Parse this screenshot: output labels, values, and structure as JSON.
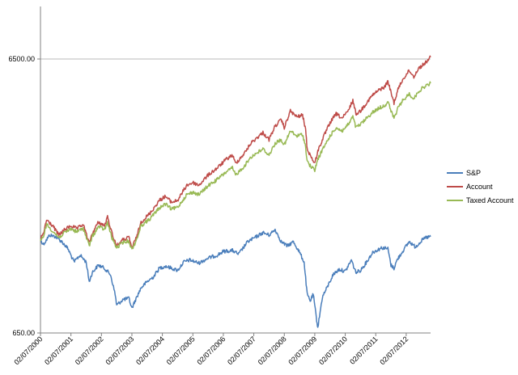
{
  "chart_data": {
    "type": "line",
    "title": "",
    "xlabel": "",
    "ylabel": "",
    "y_scale": "log",
    "ylim": [
      650,
      6500
    ],
    "y_ticks": [
      "650.00",
      "6500.00"
    ],
    "grid": "horizontal at 6500",
    "legend_position": "right",
    "x_ticks": [
      "02/07/2000",
      "02/07/2001",
      "02/07/2002",
      "02/07/2003",
      "02/07/2004",
      "02/07/2005",
      "02/07/2006",
      "02/07/2007",
      "02/07/2008",
      "02/07/2009",
      "02/07/2010",
      "02/07/2011",
      "02/07/2012"
    ],
    "x_start": 2000.1,
    "x_end": 2012.9,
    "series": [
      {
        "name": "S&P",
        "color": "#4a7ebb",
        "points": [
          [
            2000.1,
            1420
          ],
          [
            2000.2,
            1370
          ],
          [
            2000.4,
            1480
          ],
          [
            2000.6,
            1460
          ],
          [
            2000.8,
            1400
          ],
          [
            2001.0,
            1320
          ],
          [
            2001.2,
            1180
          ],
          [
            2001.4,
            1250
          ],
          [
            2001.6,
            1180
          ],
          [
            2001.7,
            1000
          ],
          [
            2001.8,
            1080
          ],
          [
            2002.0,
            1150
          ],
          [
            2002.2,
            1120
          ],
          [
            2002.4,
            1060
          ],
          [
            2002.55,
            900
          ],
          [
            2002.6,
            820
          ],
          [
            2002.8,
            860
          ],
          [
            2003.0,
            870
          ],
          [
            2003.1,
            800
          ],
          [
            2003.2,
            850
          ],
          [
            2003.4,
            950
          ],
          [
            2003.6,
            1000
          ],
          [
            2003.8,
            1040
          ],
          [
            2004.0,
            1120
          ],
          [
            2004.2,
            1140
          ],
          [
            2004.4,
            1120
          ],
          [
            2004.6,
            1100
          ],
          [
            2004.8,
            1180
          ],
          [
            2005.0,
            1200
          ],
          [
            2005.3,
            1170
          ],
          [
            2005.6,
            1220
          ],
          [
            2005.9,
            1250
          ],
          [
            2006.1,
            1290
          ],
          [
            2006.4,
            1300
          ],
          [
            2006.6,
            1260
          ],
          [
            2006.9,
            1400
          ],
          [
            2007.1,
            1440
          ],
          [
            2007.4,
            1510
          ],
          [
            2007.6,
            1480
          ],
          [
            2007.8,
            1550
          ],
          [
            2008.0,
            1400
          ],
          [
            2008.2,
            1350
          ],
          [
            2008.4,
            1400
          ],
          [
            2008.6,
            1280
          ],
          [
            2008.75,
            1180
          ],
          [
            2008.85,
            900
          ],
          [
            2008.95,
            850
          ],
          [
            2009.05,
            900
          ],
          [
            2009.15,
            740
          ],
          [
            2009.2,
            680
          ],
          [
            2009.35,
            880
          ],
          [
            2009.5,
            950
          ],
          [
            2009.7,
            1060
          ],
          [
            2009.9,
            1110
          ],
          [
            2010.1,
            1090
          ],
          [
            2010.3,
            1200
          ],
          [
            2010.45,
            1080
          ],
          [
            2010.6,
            1100
          ],
          [
            2010.8,
            1180
          ],
          [
            2011.0,
            1280
          ],
          [
            2011.3,
            1330
          ],
          [
            2011.5,
            1320
          ],
          [
            2011.6,
            1150
          ],
          [
            2011.7,
            1120
          ],
          [
            2011.8,
            1200
          ],
          [
            2012.0,
            1300
          ],
          [
            2012.2,
            1400
          ],
          [
            2012.4,
            1340
          ],
          [
            2012.6,
            1410
          ],
          [
            2012.75,
            1450
          ],
          [
            2012.9,
            1460
          ]
        ]
      },
      {
        "name": "Account",
        "color": "#be4b48",
        "points": [
          [
            2000.1,
            1430
          ],
          [
            2000.2,
            1500
          ],
          [
            2000.3,
            1680
          ],
          [
            2000.5,
            1600
          ],
          [
            2000.7,
            1480
          ],
          [
            2000.9,
            1550
          ],
          [
            2001.1,
            1600
          ],
          [
            2001.3,
            1560
          ],
          [
            2001.5,
            1620
          ],
          [
            2001.7,
            1380
          ],
          [
            2001.8,
            1500
          ],
          [
            2002.0,
            1650
          ],
          [
            2002.2,
            1600
          ],
          [
            2002.3,
            1720
          ],
          [
            2002.45,
            1500
          ],
          [
            2002.6,
            1350
          ],
          [
            2002.8,
            1420
          ],
          [
            2003.0,
            1450
          ],
          [
            2003.1,
            1330
          ],
          [
            2003.25,
            1450
          ],
          [
            2003.4,
            1650
          ],
          [
            2003.7,
            1780
          ],
          [
            2004.0,
            1980
          ],
          [
            2004.2,
            2050
          ],
          [
            2004.4,
            1950
          ],
          [
            2004.6,
            1980
          ],
          [
            2004.9,
            2250
          ],
          [
            2005.1,
            2300
          ],
          [
            2005.3,
            2250
          ],
          [
            2005.6,
            2450
          ],
          [
            2005.9,
            2600
          ],
          [
            2006.2,
            2800
          ],
          [
            2006.4,
            2900
          ],
          [
            2006.5,
            2700
          ],
          [
            2006.8,
            2950
          ],
          [
            2007.0,
            3200
          ],
          [
            2007.2,
            3350
          ],
          [
            2007.4,
            3500
          ],
          [
            2007.6,
            3300
          ],
          [
            2007.8,
            3700
          ],
          [
            2008.0,
            3900
          ],
          [
            2008.1,
            3650
          ],
          [
            2008.3,
            4200
          ],
          [
            2008.5,
            4000
          ],
          [
            2008.7,
            4050
          ],
          [
            2008.8,
            3600
          ],
          [
            2008.85,
            3050
          ],
          [
            2008.95,
            2900
          ],
          [
            2009.1,
            2700
          ],
          [
            2009.2,
            3000
          ],
          [
            2009.4,
            3400
          ],
          [
            2009.6,
            3800
          ],
          [
            2009.8,
            4100
          ],
          [
            2010.0,
            3950
          ],
          [
            2010.2,
            4200
          ],
          [
            2010.35,
            4600
          ],
          [
            2010.45,
            4100
          ],
          [
            2010.6,
            4200
          ],
          [
            2010.8,
            4500
          ],
          [
            2011.0,
            4800
          ],
          [
            2011.2,
            5000
          ],
          [
            2011.4,
            5150
          ],
          [
            2011.5,
            5400
          ],
          [
            2011.6,
            4900
          ],
          [
            2011.7,
            4500
          ],
          [
            2011.85,
            5100
          ],
          [
            2012.0,
            5500
          ],
          [
            2012.2,
            5900
          ],
          [
            2012.35,
            5600
          ],
          [
            2012.5,
            6000
          ],
          [
            2012.7,
            6250
          ],
          [
            2012.9,
            6600
          ]
        ]
      },
      {
        "name": "Taxed Account",
        "color": "#98b954",
        "points": [
          [
            2000.1,
            1400
          ],
          [
            2000.2,
            1470
          ],
          [
            2000.3,
            1620
          ],
          [
            2000.5,
            1530
          ],
          [
            2000.7,
            1450
          ],
          [
            2000.9,
            1510
          ],
          [
            2001.1,
            1560
          ],
          [
            2001.3,
            1520
          ],
          [
            2001.5,
            1570
          ],
          [
            2001.7,
            1350
          ],
          [
            2001.8,
            1460
          ],
          [
            2002.0,
            1590
          ],
          [
            2002.2,
            1550
          ],
          [
            2002.3,
            1640
          ],
          [
            2002.45,
            1440
          ],
          [
            2002.6,
            1330
          ],
          [
            2002.8,
            1390
          ],
          [
            2003.0,
            1410
          ],
          [
            2003.1,
            1310
          ],
          [
            2003.25,
            1420
          ],
          [
            2003.4,
            1600
          ],
          [
            2003.7,
            1700
          ],
          [
            2004.0,
            1860
          ],
          [
            2004.2,
            1920
          ],
          [
            2004.4,
            1840
          ],
          [
            2004.6,
            1870
          ],
          [
            2004.9,
            2080
          ],
          [
            2005.1,
            2120
          ],
          [
            2005.3,
            2080
          ],
          [
            2005.6,
            2240
          ],
          [
            2005.9,
            2360
          ],
          [
            2006.2,
            2520
          ],
          [
            2006.4,
            2600
          ],
          [
            2006.5,
            2450
          ],
          [
            2006.8,
            2650
          ],
          [
            2007.0,
            2850
          ],
          [
            2007.2,
            2950
          ],
          [
            2007.4,
            3050
          ],
          [
            2007.6,
            2900
          ],
          [
            2007.8,
            3200
          ],
          [
            2008.0,
            3300
          ],
          [
            2008.1,
            3150
          ],
          [
            2008.3,
            3550
          ],
          [
            2008.5,
            3400
          ],
          [
            2008.7,
            3450
          ],
          [
            2008.8,
            3100
          ],
          [
            2008.85,
            2750
          ],
          [
            2008.95,
            2650
          ],
          [
            2009.1,
            2550
          ],
          [
            2009.2,
            2800
          ],
          [
            2009.4,
            3100
          ],
          [
            2009.6,
            3400
          ],
          [
            2009.8,
            3650
          ],
          [
            2010.0,
            3550
          ],
          [
            2010.2,
            3750
          ],
          [
            2010.35,
            4000
          ],
          [
            2010.45,
            3650
          ],
          [
            2010.6,
            3750
          ],
          [
            2010.8,
            3950
          ],
          [
            2011.0,
            4150
          ],
          [
            2011.2,
            4300
          ],
          [
            2011.4,
            4400
          ],
          [
            2011.5,
            4550
          ],
          [
            2011.6,
            4200
          ],
          [
            2011.7,
            3950
          ],
          [
            2011.85,
            4350
          ],
          [
            2012.0,
            4600
          ],
          [
            2012.2,
            4850
          ],
          [
            2012.35,
            4650
          ],
          [
            2012.5,
            4950
          ],
          [
            2012.7,
            5150
          ],
          [
            2012.9,
            5300
          ]
        ]
      }
    ]
  }
}
